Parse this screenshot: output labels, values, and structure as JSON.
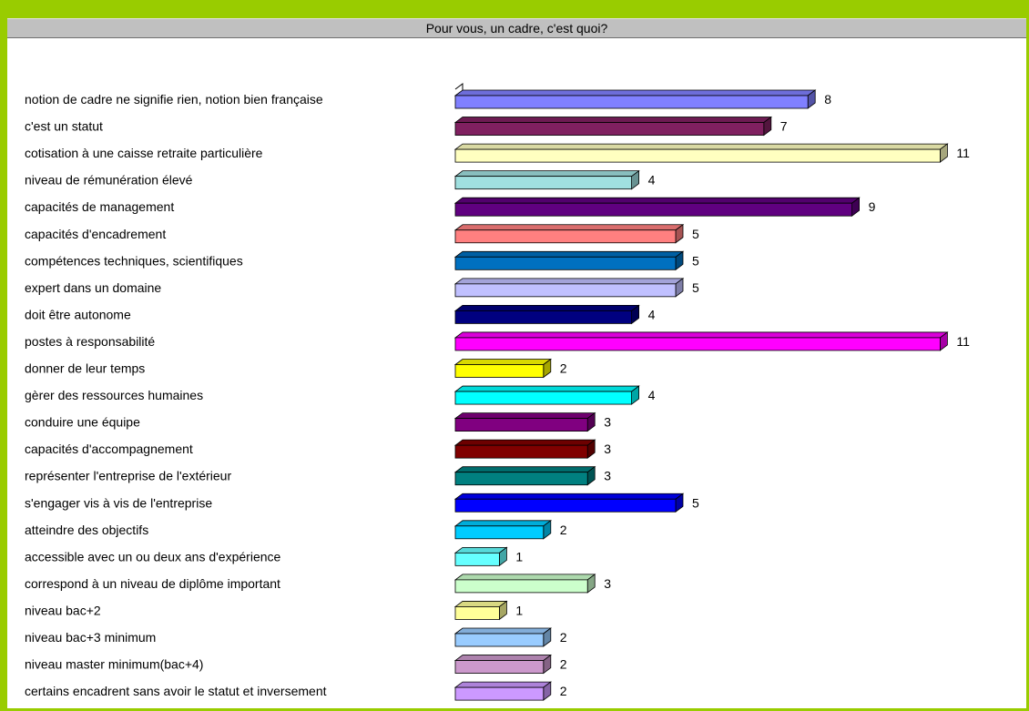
{
  "title": "Pour vous, un cadre, c'est quoi?",
  "colors": {
    "frame_border": "#99cc00",
    "title_bar": "#c0c0c0"
  },
  "chart_data": {
    "type": "bar",
    "orientation": "horizontal",
    "style": "3d",
    "title": "Pour vous, un cadre, c'est quoi?",
    "xlabel": "",
    "ylabel": "",
    "xlim": [
      0,
      11
    ],
    "grid": false,
    "legend": "none",
    "categories": [
      "notion de cadre ne signifie rien, notion bien française",
      "c'est un statut",
      "cotisation à une caisse retraite particulière",
      "niveau de rémunération élevé",
      "capacités de management",
      "capacités d'encadrement",
      "compétences techniques, scientifiques",
      "expert dans un domaine",
      "doit être autonome",
      "postes à responsabilité",
      "donner de leur temps",
      "gèrer des ressources humaines",
      "conduire une équipe",
      "capacités d'accompagnement",
      "représenter l'entreprise de l'extérieur",
      "s'engager vis à vis de l'entreprise",
      "atteindre des objectifs",
      "accessible avec un ou deux ans d'expérience",
      "correspond à un niveau de diplôme important",
      "niveau bac+2",
      "niveau bac+3 minimum",
      "niveau master minimum(bac+4)",
      "certains encadrent sans avoir le statut et inversement"
    ],
    "values": [
      8,
      7,
      11,
      4,
      9,
      5,
      5,
      5,
      4,
      11,
      2,
      4,
      3,
      3,
      3,
      5,
      2,
      1,
      3,
      1,
      2,
      2,
      2
    ],
    "value_labels": [
      "8",
      "7",
      "11",
      "4",
      "9",
      "5",
      "5",
      "5",
      "4",
      "11",
      "2",
      "4",
      "3",
      "3",
      "3",
      "5",
      "2",
      "1",
      "3",
      "1",
      "2",
      "2",
      "2"
    ],
    "bar_colors": [
      "#8080ff",
      "#802060",
      "#ffffc0",
      "#a0e0e0",
      "#600080",
      "#ff8080",
      "#0070c0",
      "#c0c0ff",
      "#000080",
      "#ff00ff",
      "#ffff00",
      "#00ffff",
      "#800080",
      "#800000",
      "#008080",
      "#0000ff",
      "#00ccff",
      "#66ffff",
      "#ccffcc",
      "#ffff99",
      "#99ccff",
      "#cc99cc",
      "#cc99ff"
    ]
  }
}
